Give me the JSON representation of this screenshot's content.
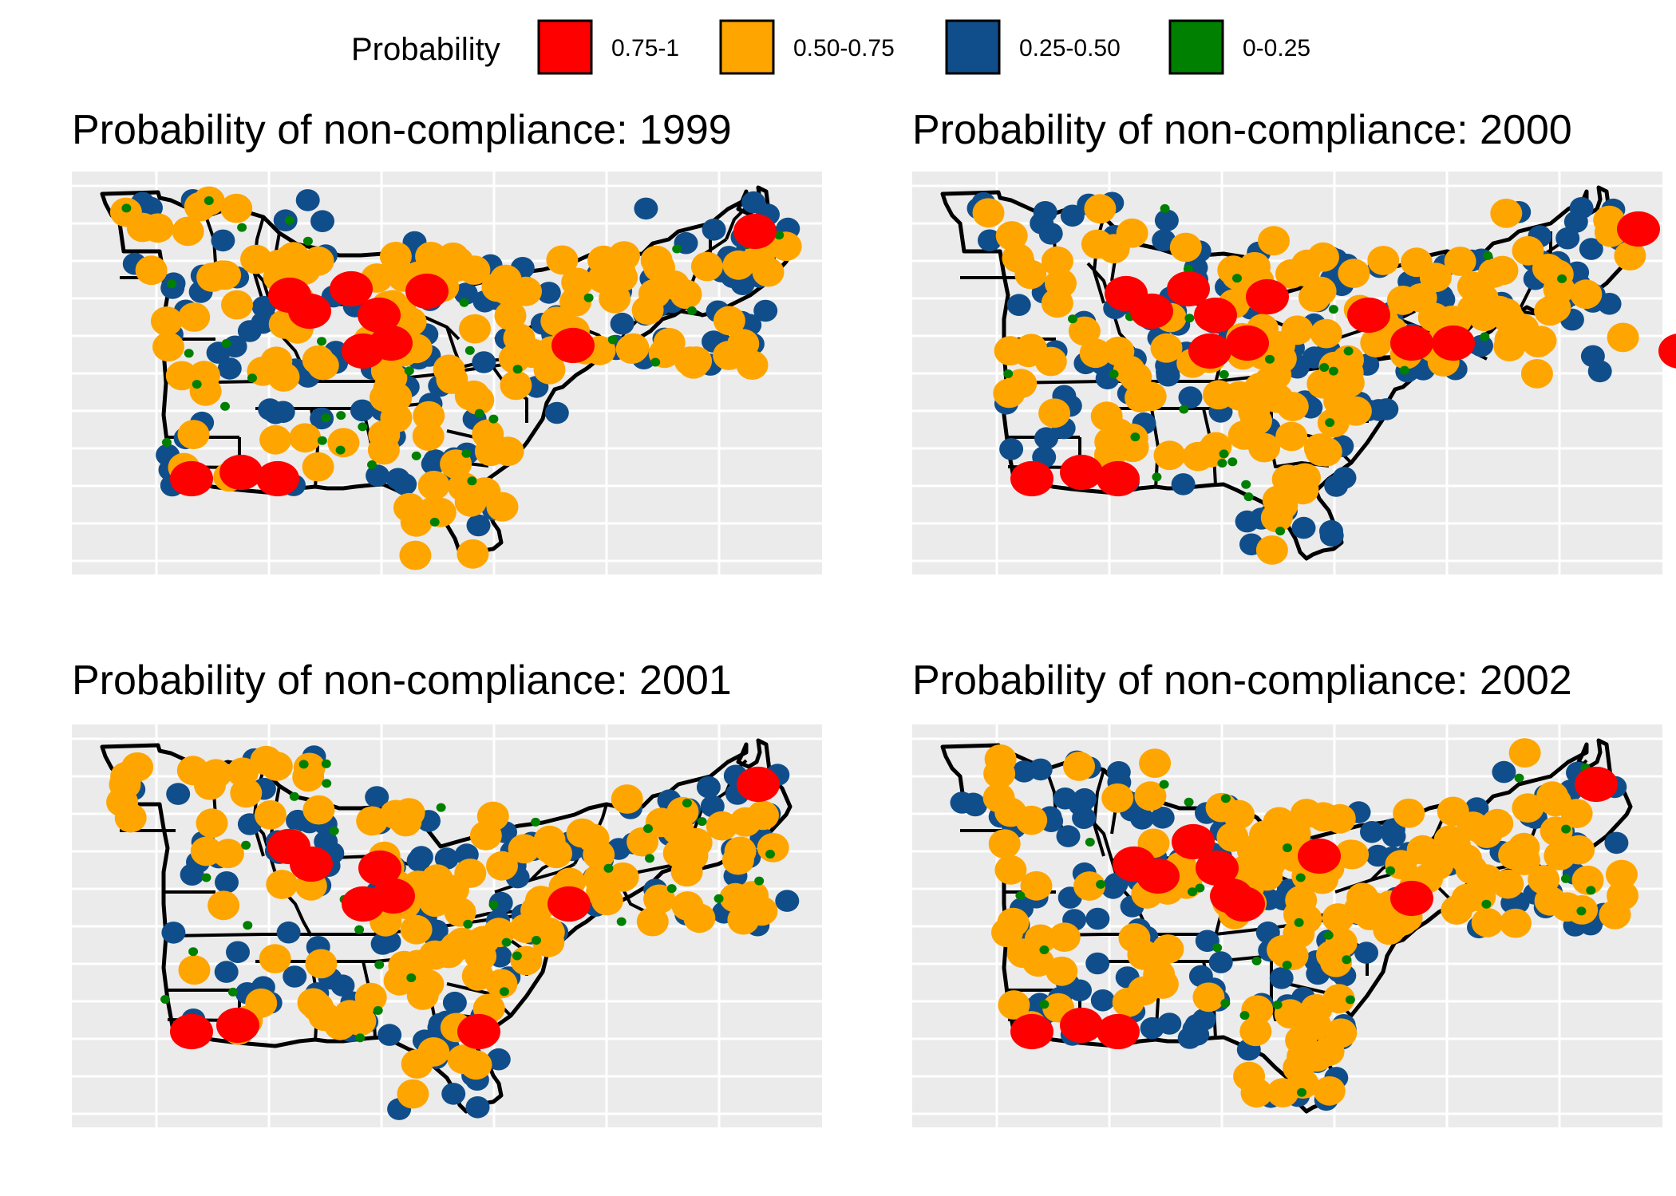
{
  "figure": {
    "legend": {
      "title": "Probability",
      "entries": [
        {
          "label": "0.75-1",
          "color": "#ff0000"
        },
        {
          "label": "0.50-0.75",
          "color": "#ffa500"
        },
        {
          "label": "0.25-0.50",
          "color": "#104e8b"
        },
        {
          "label": "0-0.25",
          "color": "#008000"
        }
      ]
    },
    "panels": [
      {
        "title": "Probability of non-compliance:  1999",
        "year": "1999"
      },
      {
        "title": "Probability of non-compliance:  2000",
        "year": "2000"
      },
      {
        "title": "Probability of non-compliance:  2001",
        "year": "2001"
      },
      {
        "title": "Probability of non-compliance:  2002",
        "year": "2002"
      }
    ],
    "colors": {
      "panel_background": "#ebebeb",
      "gridline": "#ffffff",
      "boundary": "#000000"
    }
  }
}
